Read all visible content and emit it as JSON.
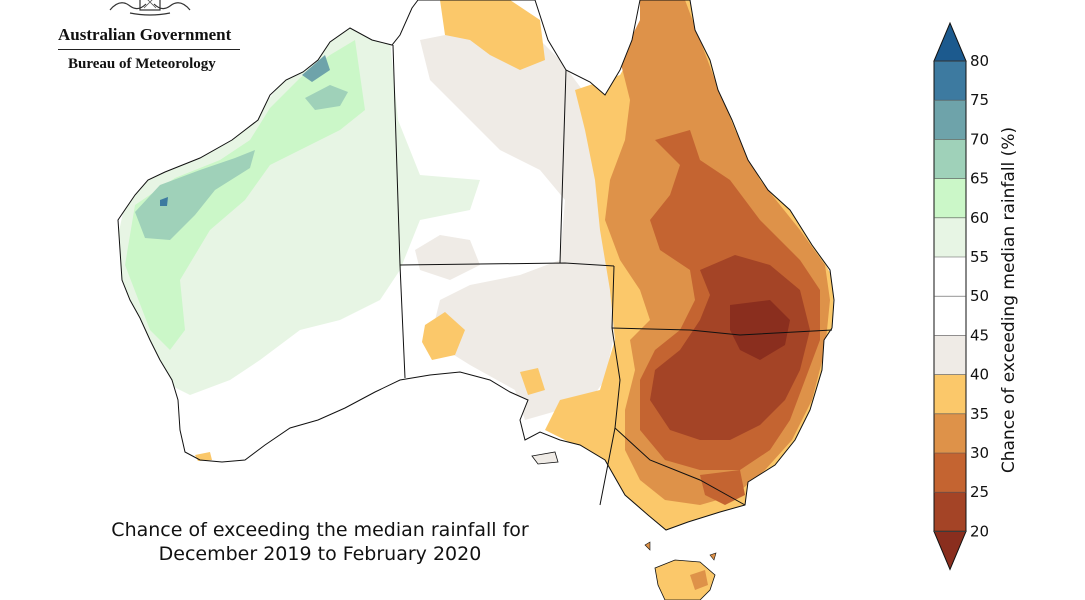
{
  "logo": {
    "line1": "Australian Government",
    "line2": "Bureau of Meteorology"
  },
  "map": {
    "title_line1": "Chance of exceeding the median rainfall for",
    "title_line2": "December 2019 to February 2020",
    "legend": {
      "title": "Chance of exceeding median rainfall (%)",
      "ticks": [
        80,
        75,
        70,
        65,
        60,
        55,
        50,
        45,
        40,
        35,
        30,
        25,
        20
      ],
      "bins": [
        {
          "range": "> 80",
          "color": "#1c5a8e"
        },
        {
          "range": "75-80",
          "color": "#3d7aa0"
        },
        {
          "range": "70-75",
          "color": "#6ea3aa"
        },
        {
          "range": "65-70",
          "color": "#9fd1b9"
        },
        {
          "range": "60-65",
          "color": "#cbf7c8"
        },
        {
          "range": "55-60",
          "color": "#e7f5e4"
        },
        {
          "range": "50-55",
          "color": "#ffffff"
        },
        {
          "range": "45-50",
          "color": "#ffffff"
        },
        {
          "range": "40-45",
          "color": "#efebe6"
        },
        {
          "range": "35-40",
          "color": "#fbc86a"
        },
        {
          "range": "30-35",
          "color": "#de9249"
        },
        {
          "range": "25-30",
          "color": "#c46431"
        },
        {
          "range": "20-25",
          "color": "#a44426"
        },
        {
          "range": "< 20",
          "color": "#8a2e1e"
        }
      ]
    }
  }
}
